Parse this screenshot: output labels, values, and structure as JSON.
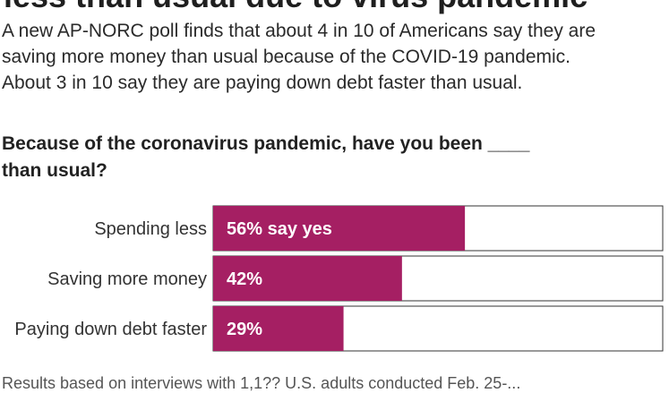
{
  "headline": "less than usual due to virus pandemic",
  "intro": {
    "lines": [
      "A new AP-NORC poll finds that about 4 in 10 of Americans say they are",
      "saving more money than usual because of the COVID-19 pandemic.",
      "About 3 in 10 say they are paying down debt faster than usual."
    ]
  },
  "question": {
    "lines": [
      "Because of the coronavirus pandemic, have you been ____",
      "than usual?"
    ]
  },
  "chart_data": {
    "type": "bar",
    "orientation": "horizontal",
    "categories": [
      "Spending less",
      "Saving more money",
      "Paying down debt faster"
    ],
    "values": [
      56,
      42,
      29
    ],
    "value_labels": [
      "56% say yes",
      "42%",
      "29%"
    ],
    "xlim": [
      0,
      100
    ],
    "colors": {
      "bar": "#a51f63",
      "track_border": "#333333",
      "label_text": "#ffffff"
    }
  },
  "footnote": "Results based on interviews with 1,1?? U.S. adults conducted Feb. 25-..."
}
